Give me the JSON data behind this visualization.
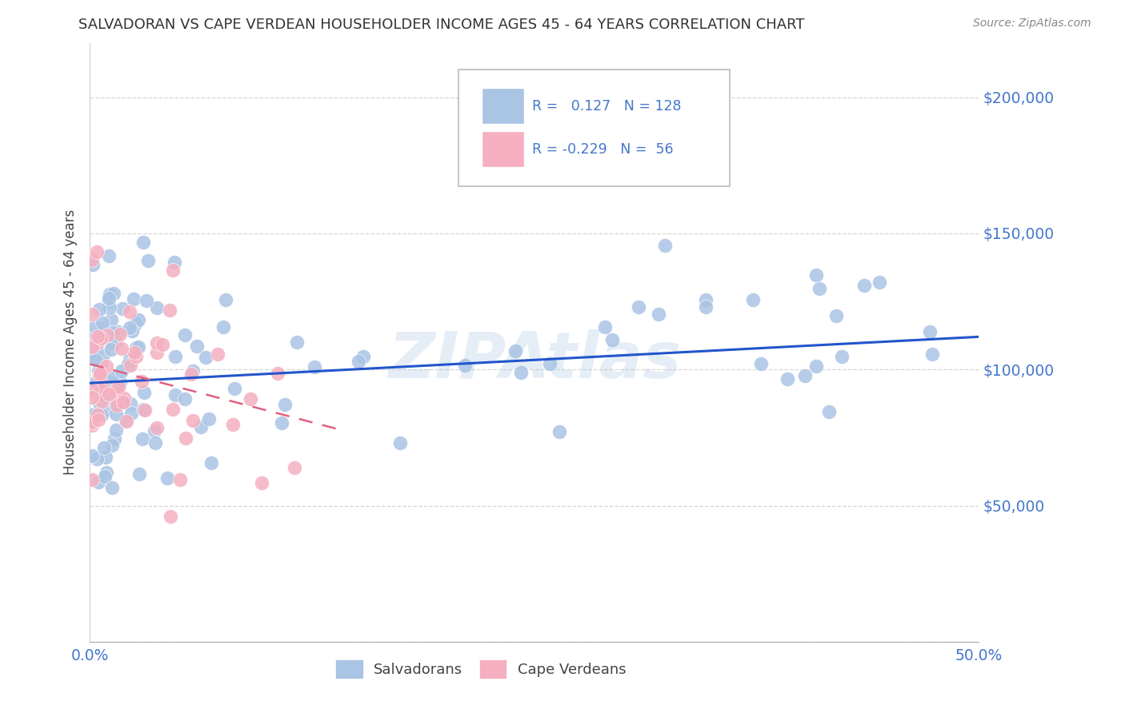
{
  "title": "SALVADORAN VS CAPE VERDEAN HOUSEHOLDER INCOME AGES 45 - 64 YEARS CORRELATION CHART",
  "source": "Source: ZipAtlas.com",
  "ylabel": "Householder Income Ages 45 - 64 years",
  "xlim": [
    0.0,
    0.5
  ],
  "ylim": [
    0,
    220000
  ],
  "background_color": "#ffffff",
  "grid_color": "#cccccc",
  "salvadoran_color": "#aac4e4",
  "capeverdean_color": "#f5afc0",
  "line_salvadoran_color": "#2255cc",
  "line_capeverdean_color": "#e06080",
  "axis_label_color": "#4477cc",
  "title_color": "#333333",
  "watermark": "ZIPAtlas",
  "R_salvadoran": 0.127,
  "N_salvadoran": 128,
  "R_capeverdean": -0.229,
  "N_capeverdean": 56,
  "sal_line_x0": 0.0,
  "sal_line_y0": 95000,
  "sal_line_x1": 0.5,
  "sal_line_y1": 112000,
  "cv_line_x0": 0.0,
  "cv_line_y0": 102000,
  "cv_line_x1": 0.14,
  "cv_line_y1": 78000
}
